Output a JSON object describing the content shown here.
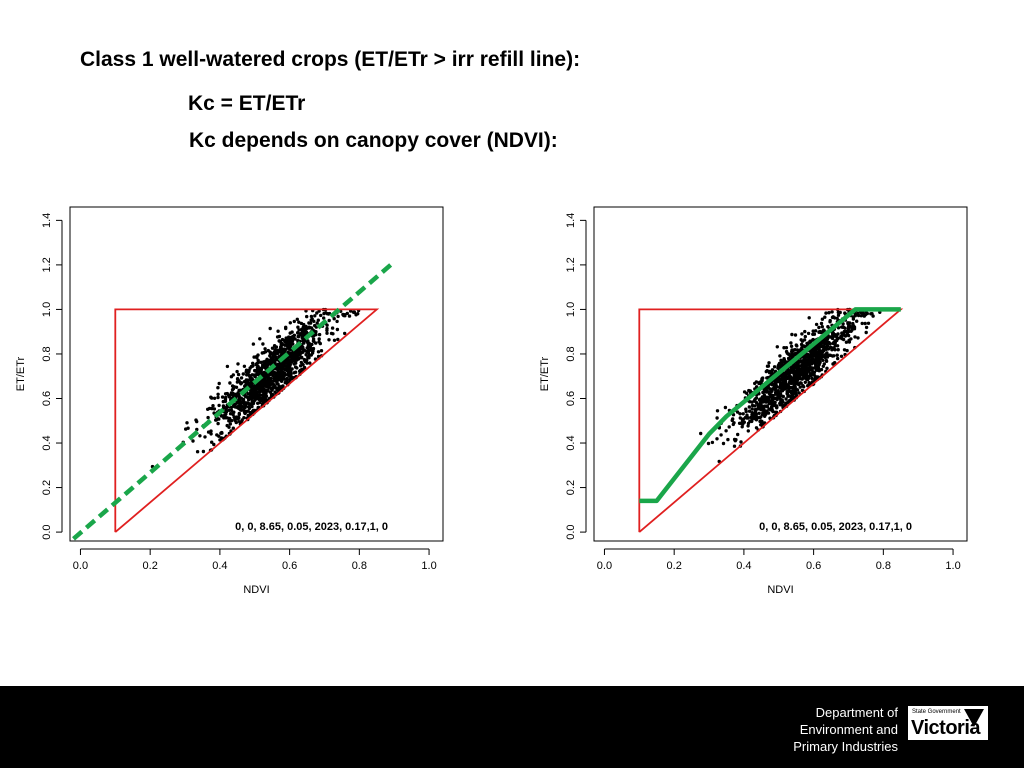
{
  "slide": {
    "title": "Class 1 well-watered crops  (ET/ETr > irr refill line):",
    "line2": "Kc = ET/ETr",
    "line3": "Kc depends on canopy cover (NDVI):"
  },
  "footer": {
    "dept_line1": "Department of",
    "dept_line2": "Environment and",
    "dept_line3": "Primary Industries",
    "logo_small": "State Government",
    "logo_text": "Victoria"
  },
  "colors": {
    "envelope": "#e02020",
    "fit": "#1aa64a",
    "points": "#000000"
  },
  "chart_data": [
    {
      "type": "scatter",
      "title": "",
      "xlabel": "NDVI",
      "ylabel": "ET/ETr",
      "xlim": [
        0.0,
        1.0
      ],
      "ylim": [
        0.0,
        1.4
      ],
      "x_ticks": [
        "0.0",
        "0.2",
        "0.4",
        "0.6",
        "0.8",
        "1.0"
      ],
      "y_ticks": [
        "0.0",
        "0.2",
        "0.4",
        "0.6",
        "0.8",
        "1.0",
        "1.2",
        "1.4"
      ],
      "annotation": "0, 0, 8.65, 0.05, 2023, 0.17,1, 0",
      "envelope": {
        "x": [
          0.1,
          0.1,
          0.85,
          0.1
        ],
        "y": [
          0.0,
          1.0,
          1.0,
          0.0
        ]
      },
      "fit_line": {
        "style": "dashed",
        "x": [
          -0.02,
          0.89
        ],
        "y": [
          -0.03,
          1.2
        ]
      },
      "cloud": {
        "center_x": 0.55,
        "center_y": 0.72,
        "slope": 1.33,
        "n_points": 1200
      }
    },
    {
      "type": "scatter",
      "title": "",
      "xlabel": "NDVI",
      "ylabel": "ET/ETr",
      "xlim": [
        0.0,
        1.0
      ],
      "ylim": [
        0.0,
        1.4
      ],
      "x_ticks": [
        "0.0",
        "0.2",
        "0.4",
        "0.6",
        "0.8",
        "1.0"
      ],
      "y_ticks": [
        "0.0",
        "0.2",
        "0.4",
        "0.6",
        "0.8",
        "1.0",
        "1.2",
        "1.4"
      ],
      "annotation": "0, 0, 8.65, 0.05, 2023, 0.17,1, 0",
      "envelope": {
        "x": [
          0.1,
          0.1,
          0.85,
          0.1
        ],
        "y": [
          0.0,
          1.0,
          1.0,
          0.0
        ]
      },
      "fit_line": {
        "style": "solid",
        "x": [
          0.1,
          0.15,
          0.3,
          0.35,
          0.72,
          0.85
        ],
        "y": [
          0.14,
          0.14,
          0.44,
          0.52,
          1.0,
          1.0
        ]
      },
      "cloud": {
        "center_x": 0.55,
        "center_y": 0.72,
        "slope": 1.33,
        "n_points": 1200
      }
    }
  ]
}
